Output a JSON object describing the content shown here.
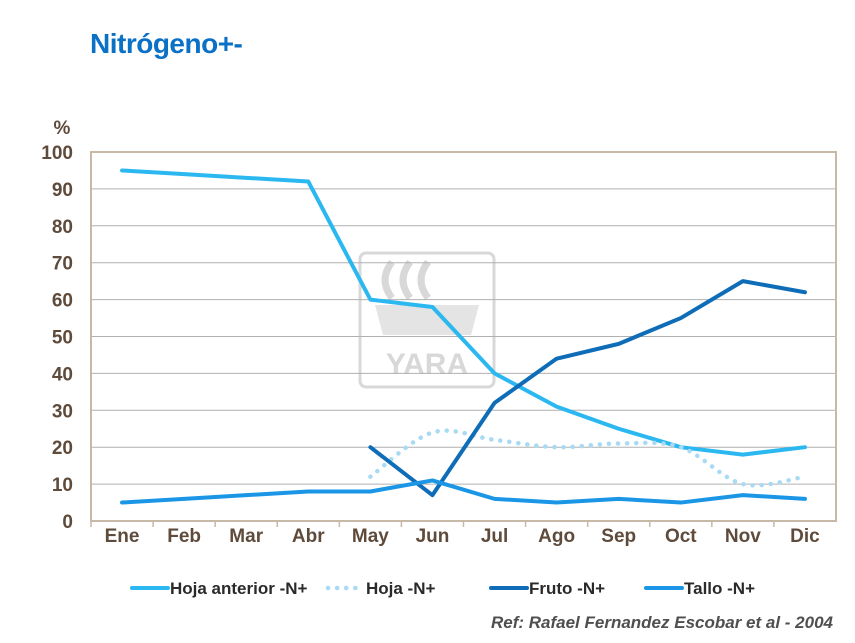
{
  "title": "Nitrógeno+-",
  "reference": "Ref: Rafael Fernandez Escobar et al - 2004",
  "watermark": {
    "text": "YARA",
    "color": "#d8d8d8"
  },
  "chart_data": {
    "type": "line",
    "title": "",
    "xlabel": "",
    "ylabel": "%",
    "categories": [
      "Ene",
      "Feb",
      "Mar",
      "Abr",
      "May",
      "Jun",
      "Jul",
      "Ago",
      "Sep",
      "Oct",
      "Nov",
      "Dic"
    ],
    "ylim": [
      0,
      100
    ],
    "yticks": [
      0,
      10,
      20,
      30,
      40,
      50,
      60,
      70,
      80,
      90,
      100
    ],
    "grid": true,
    "legend_position": "bottom",
    "frame_color": "#c8b8a6",
    "grid_color": "#b0b0b0",
    "series": [
      {
        "name": "Hoja anterior -N+",
        "color": "#2bb8f0",
        "style": "solid",
        "values": [
          95,
          94,
          93,
          92,
          60,
          58,
          40,
          31,
          25,
          20,
          18,
          20
        ]
      },
      {
        "name": "Hoja -N+",
        "color": "#a8daf4",
        "style": "dotted",
        "values": [
          null,
          null,
          null,
          null,
          12,
          24,
          22,
          20,
          21,
          20,
          10,
          12
        ]
      },
      {
        "name": "Fruto -N+",
        "color": "#0f6db8",
        "style": "solid",
        "values": [
          null,
          null,
          null,
          null,
          20,
          7,
          32,
          44,
          48,
          55,
          65,
          62
        ]
      },
      {
        "name": "Tallo -N+",
        "color": "#1b96e6",
        "style": "solid",
        "values": [
          5,
          6,
          7,
          8,
          8,
          11,
          6,
          5,
          6,
          5,
          7,
          6
        ]
      }
    ]
  }
}
